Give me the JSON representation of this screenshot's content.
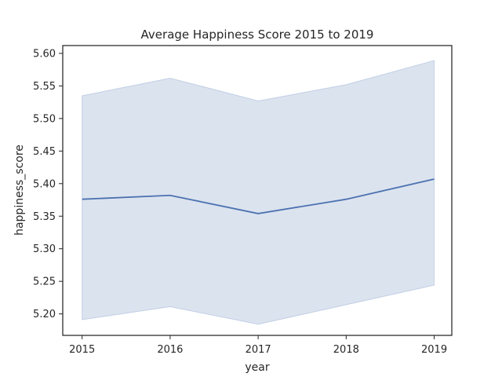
{
  "chart_data": {
    "type": "line",
    "title": "Average Happiness Score 2015 to 2019",
    "xlabel": "year",
    "ylabel": "happiness_score",
    "x": [
      2015,
      2016,
      2017,
      2018,
      2019
    ],
    "xticks": [
      "2015",
      "2016",
      "2017",
      "2018",
      "2019"
    ],
    "yticks": [
      "5.20",
      "5.25",
      "5.30",
      "5.35",
      "5.40",
      "5.45",
      "5.50",
      "5.55",
      "5.60"
    ],
    "xlim": [
      2014.78,
      2019.2
    ],
    "ylim": [
      5.167,
      5.612
    ],
    "grid": false,
    "series": [
      {
        "values": [
          5.376,
          5.382,
          5.354,
          5.376,
          5.407
        ],
        "ci_upper": [
          5.535,
          5.562,
          5.527,
          5.552,
          5.589
        ],
        "ci_lower": [
          5.191,
          5.211,
          5.184,
          5.214,
          5.244
        ],
        "color": "#4c72b0",
        "band_color": "#4c72b0"
      }
    ]
  }
}
